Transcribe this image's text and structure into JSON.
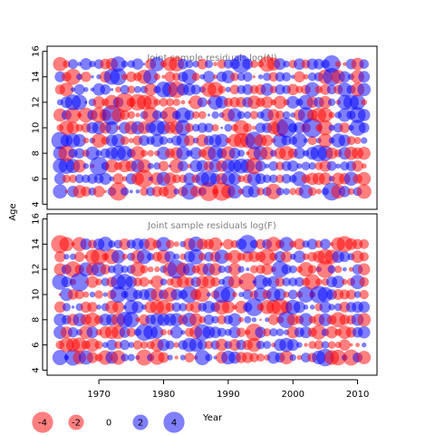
{
  "chart_data": {
    "type": "scatter",
    "encoding": "bubble",
    "x_axis_label": "Year",
    "y_axis_label": "Age",
    "x_range": [
      1962,
      2013
    ],
    "x_ticks": [
      1970,
      1980,
      1990,
      2000,
      2010
    ],
    "colors": {
      "positive": "#0000ff",
      "negative": "#ff0000",
      "frame": "#000000",
      "title": "#808080"
    },
    "panels": [
      {
        "title": "Joint sample residuals log(N)",
        "years": [
          1964,
          2011
        ],
        "ages": [
          5,
          15
        ],
        "y_range": [
          3.6,
          16.4
        ],
        "y_ticks": [
          4,
          6,
          8,
          10,
          12,
          14,
          16
        ],
        "seed": 7
      },
      {
        "title": "Joint sample residuals log(F)",
        "years": [
          1964,
          2011
        ],
        "ages": [
          5,
          14
        ],
        "y_range": [
          3.6,
          16.4
        ],
        "y_ticks": [
          4,
          6,
          8,
          10,
          12,
          14,
          16
        ],
        "seed": 19
      }
    ],
    "legend": {
      "labels": [
        "-4",
        "-2",
        "0",
        "2",
        "4"
      ],
      "values": [
        -4,
        -2,
        0,
        2,
        4
      ]
    }
  }
}
